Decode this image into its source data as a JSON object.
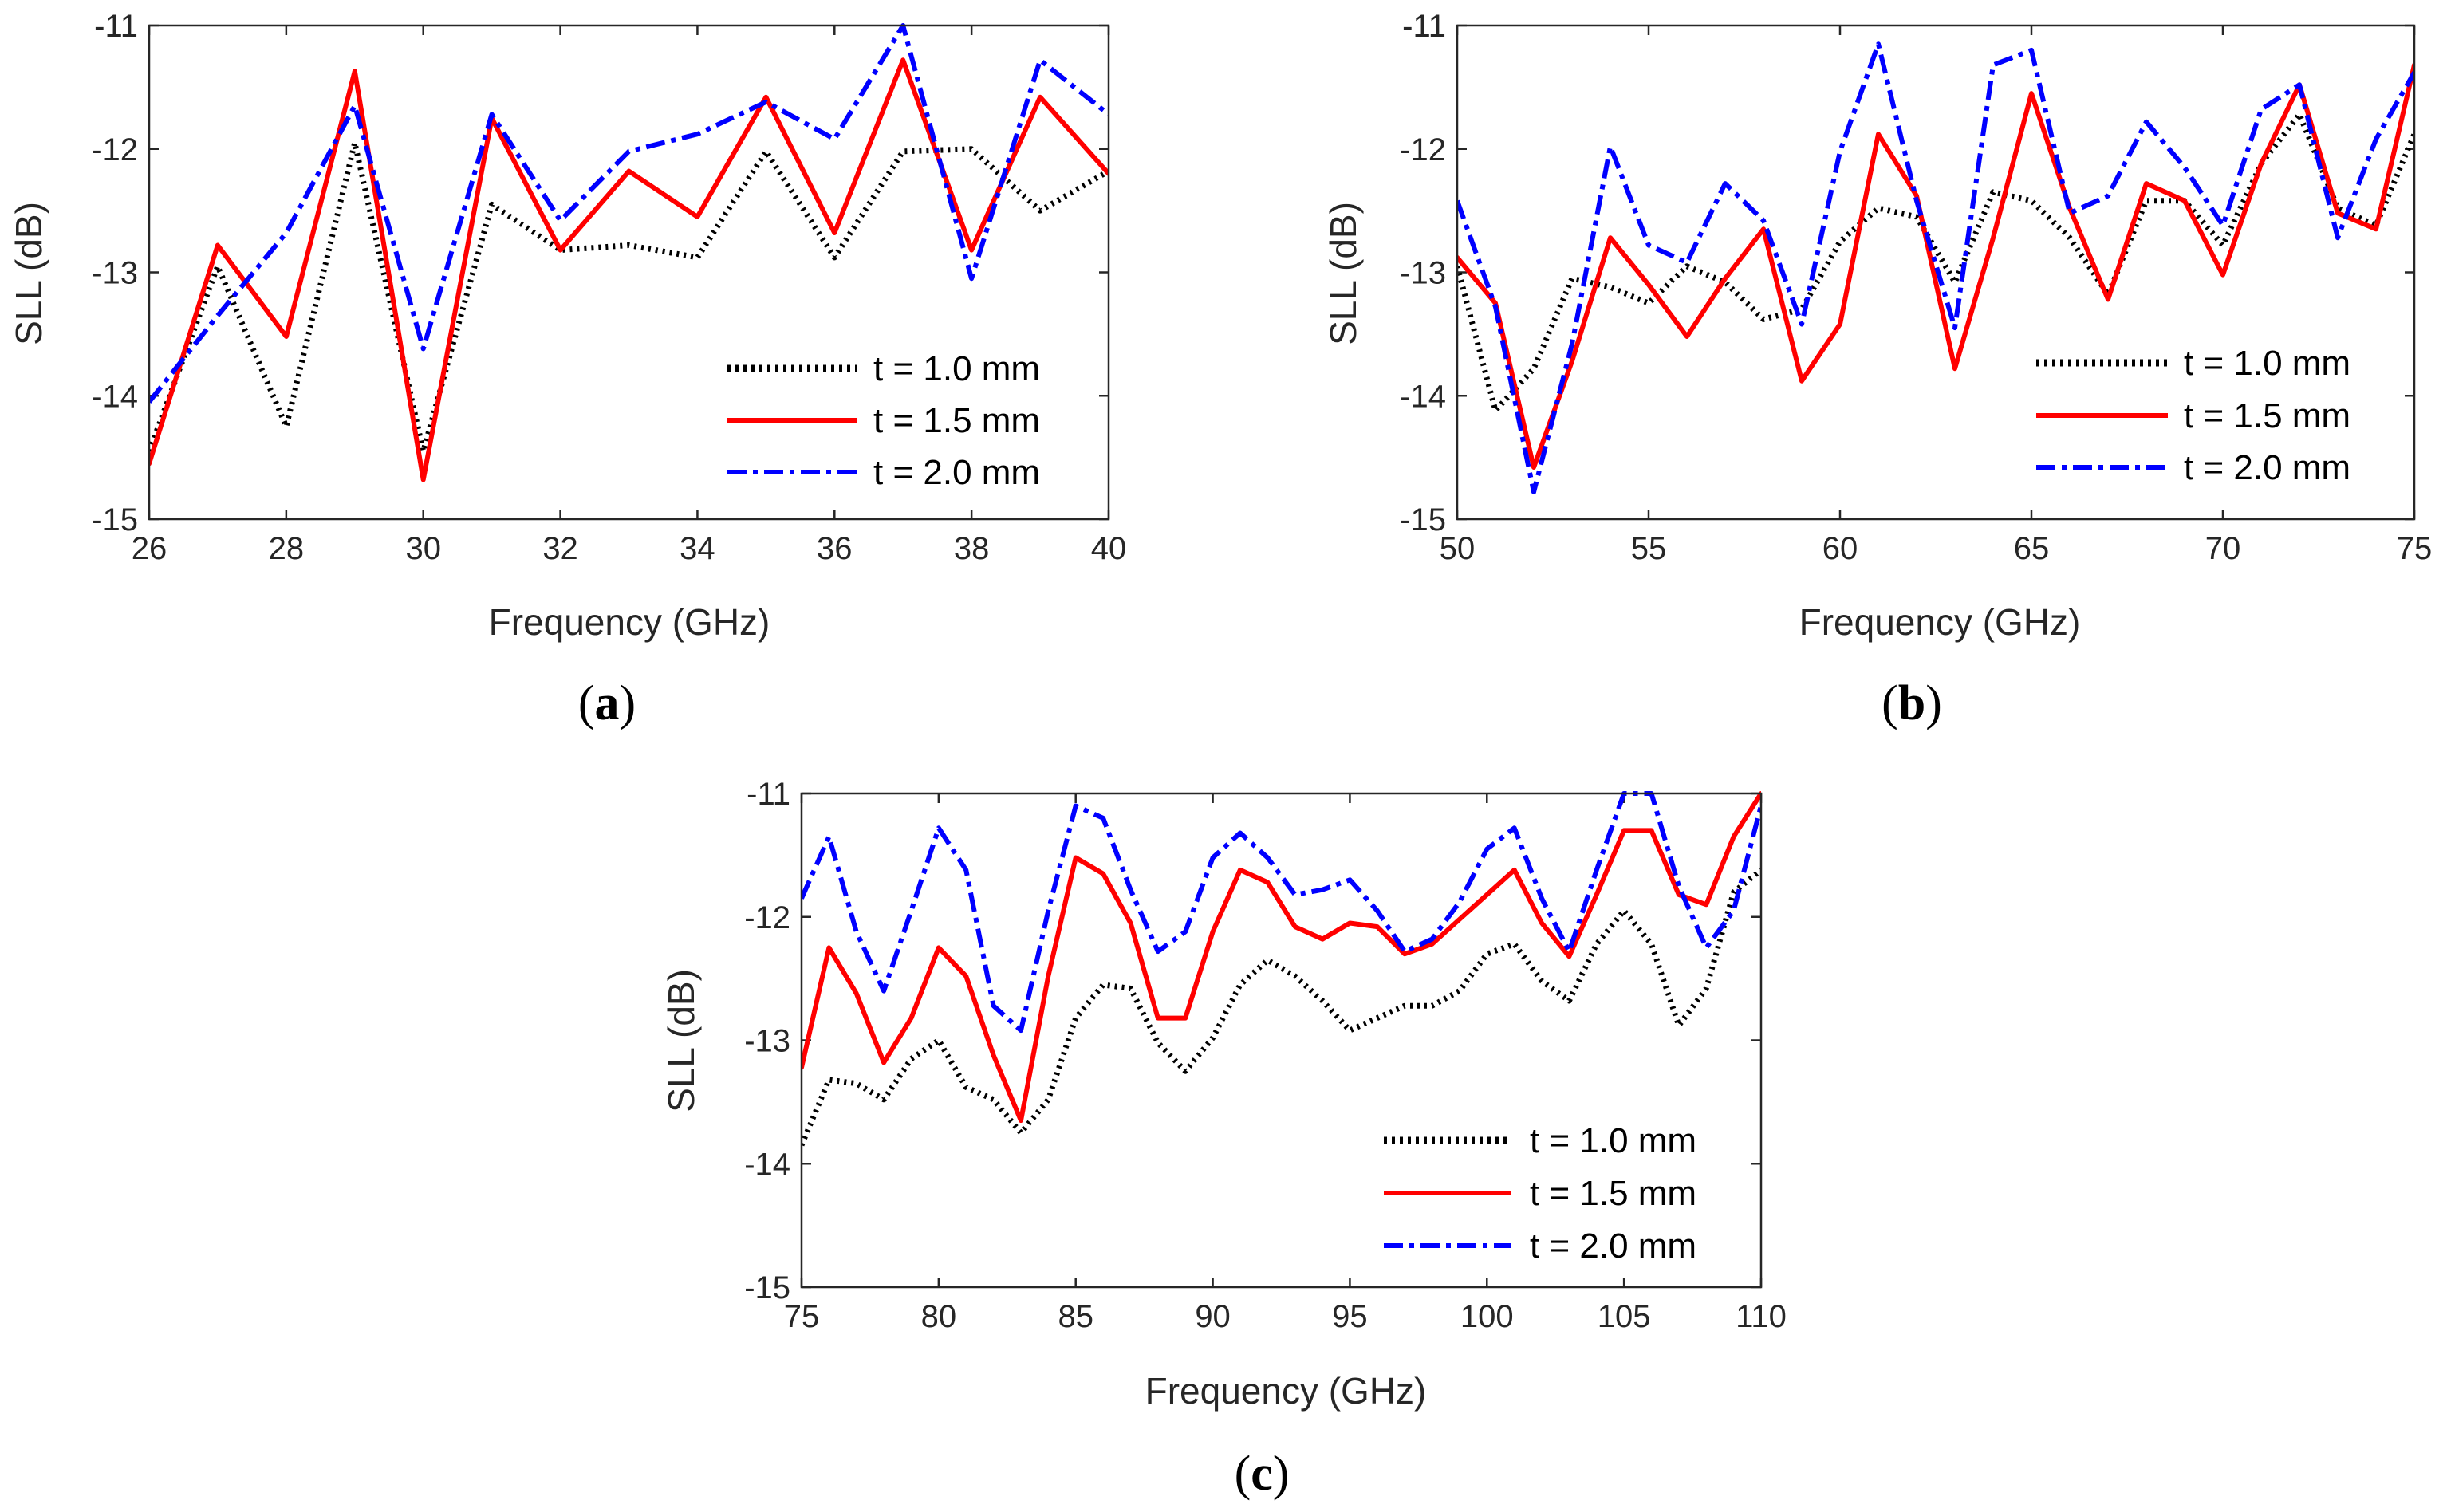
{
  "chart_data": [
    {
      "type": "line",
      "panel": "a",
      "panel_label": "a",
      "xlabel": "Frequency (GHz)",
      "ylabel": "SLL (dB)",
      "xlim": [
        26,
        40
      ],
      "ylim": [
        -15,
        -11
      ],
      "xticks": [
        26,
        28,
        30,
        32,
        34,
        36,
        38,
        40
      ],
      "yticks": [
        -15,
        -14,
        -13,
        -12,
        -11
      ],
      "legend_position": "bottom-right",
      "x": [
        26,
        27,
        28,
        29,
        30,
        31,
        32,
        33,
        34,
        35,
        36,
        37,
        38,
        39,
        40
      ],
      "series": [
        {
          "name": "t = 1.0 mm",
          "color": "#000000",
          "style": "dotted",
          "values": [
            -14.45,
            -12.95,
            -14.25,
            -11.95,
            -14.45,
            -12.45,
            -12.82,
            -12.78,
            -12.88,
            -12.02,
            -12.88,
            -12.02,
            -12.0,
            -12.5,
            -12.18
          ]
        },
        {
          "name": "t = 1.5 mm",
          "color": "#ff0000",
          "style": "solid",
          "values": [
            -14.55,
            -12.78,
            -13.52,
            -11.37,
            -14.68,
            -11.75,
            -12.82,
            -12.18,
            -12.55,
            -11.58,
            -12.68,
            -11.28,
            -12.82,
            -11.58,
            -12.2
          ]
        },
        {
          "name": "t = 2.0 mm",
          "color": "#0000ff",
          "style": "dashdot",
          "values": [
            -14.05,
            -13.35,
            -12.68,
            -11.65,
            -13.62,
            -11.72,
            -12.58,
            -12.02,
            -11.88,
            -11.62,
            -11.92,
            -11.0,
            -13.05,
            -11.28,
            -11.72
          ]
        }
      ]
    },
    {
      "type": "line",
      "panel": "b",
      "panel_label": "b",
      "xlabel": "Frequency (GHz)",
      "ylabel": "SLL (dB)",
      "xlim": [
        50,
        75
      ],
      "ylim": [
        -15,
        -11
      ],
      "xticks": [
        50,
        55,
        60,
        65,
        70,
        75
      ],
      "yticks": [
        -15,
        -14,
        -13,
        -12,
        -11
      ],
      "legend_position": "bottom-right",
      "x": [
        50,
        51,
        52,
        53,
        54,
        55,
        56,
        57,
        58,
        59,
        60,
        61,
        62,
        63,
        64,
        65,
        66,
        67,
        68,
        69,
        70,
        71,
        72,
        73,
        74,
        75
      ],
      "series": [
        {
          "name": "t = 1.0 mm",
          "color": "#000000",
          "style": "dotted",
          "values": [
            -12.95,
            -14.12,
            -13.78,
            -13.05,
            -13.12,
            -13.25,
            -12.95,
            -13.08,
            -13.38,
            -13.3,
            -12.75,
            -12.48,
            -12.55,
            -13.08,
            -12.35,
            -12.42,
            -12.72,
            -13.18,
            -12.42,
            -12.42,
            -12.78,
            -12.12,
            -11.72,
            -12.48,
            -12.62,
            -11.88
          ]
        },
        {
          "name": "t = 1.5 mm",
          "color": "#ff0000",
          "style": "solid",
          "values": [
            -12.88,
            -13.25,
            -14.58,
            -13.72,
            -12.72,
            -13.1,
            -13.52,
            -13.05,
            -12.65,
            -13.88,
            -13.42,
            -11.88,
            -12.38,
            -13.78,
            -12.72,
            -11.55,
            -12.48,
            -13.22,
            -12.28,
            -12.42,
            -13.02,
            -12.12,
            -11.48,
            -12.52,
            -12.65,
            -11.32
          ]
        },
        {
          "name": "t = 2.0 mm",
          "color": "#0000ff",
          "style": "dashdot",
          "values": [
            -12.42,
            -13.28,
            -14.78,
            -13.58,
            -11.98,
            -12.78,
            -12.92,
            -12.28,
            -12.58,
            -13.42,
            -12.02,
            -11.15,
            -12.42,
            -13.45,
            -11.32,
            -11.2,
            -12.52,
            -12.38,
            -11.78,
            -12.15,
            -12.62,
            -11.68,
            -11.48,
            -12.72,
            -11.92,
            -11.38
          ]
        }
      ]
    },
    {
      "type": "line",
      "panel": "c",
      "panel_label": "c",
      "xlabel": "Frequency (GHz)",
      "ylabel": "SLL (dB)",
      "xlim": [
        75,
        110
      ],
      "ylim": [
        -15,
        -11
      ],
      "xticks": [
        75,
        80,
        85,
        90,
        95,
        100,
        105,
        110
      ],
      "yticks": [
        -15,
        -14,
        -13,
        -12,
        -11
      ],
      "legend_position": "bottom-right",
      "x": [
        75,
        76,
        77,
        78,
        79,
        80,
        81,
        82,
        83,
        84,
        85,
        86,
        87,
        88,
        89,
        90,
        91,
        92,
        93,
        94,
        95,
        96,
        97,
        98,
        99,
        100,
        101,
        102,
        103,
        104,
        105,
        106,
        107,
        108,
        109,
        110
      ],
      "series": [
        {
          "name": "t = 1.0 mm",
          "color": "#000000",
          "style": "dotted",
          "values": [
            -13.85,
            -13.32,
            -13.35,
            -13.48,
            -13.15,
            -13.0,
            -13.38,
            -13.48,
            -13.75,
            -13.48,
            -12.82,
            -12.55,
            -12.58,
            -13.02,
            -13.25,
            -12.98,
            -12.55,
            -12.35,
            -12.48,
            -12.68,
            -12.92,
            -12.82,
            -12.72,
            -12.72,
            -12.6,
            -12.3,
            -12.22,
            -12.52,
            -12.68,
            -12.22,
            -11.95,
            -12.22,
            -12.88,
            -12.58,
            -11.8,
            -11.62
          ]
        },
        {
          "name": "t = 1.5 mm",
          "color": "#ff0000",
          "style": "solid",
          "values": [
            -13.22,
            -12.25,
            -12.62,
            -13.18,
            -12.82,
            -12.25,
            -12.48,
            -13.12,
            -13.65,
            -12.48,
            -11.52,
            -11.65,
            -12.05,
            -12.82,
            -12.82,
            -12.12,
            -11.62,
            -11.72,
            -12.08,
            -12.18,
            -12.05,
            -12.08,
            -12.3,
            -12.22,
            -12.02,
            -11.82,
            -11.62,
            -12.05,
            -12.32,
            -11.82,
            -11.3,
            -11.3,
            -11.82,
            -11.9,
            -11.35,
            -11.0
          ]
        },
        {
          "name": "t = 2.0 mm",
          "color": "#0000ff",
          "style": "dashdot",
          "values": [
            -11.85,
            -11.35,
            -12.12,
            -12.6,
            -11.95,
            -11.28,
            -11.62,
            -12.72,
            -12.92,
            -11.95,
            -11.1,
            -11.2,
            -11.78,
            -12.28,
            -12.12,
            -11.52,
            -11.32,
            -11.52,
            -11.82,
            -11.78,
            -11.7,
            -11.95,
            -12.28,
            -12.18,
            -11.88,
            -11.45,
            -11.28,
            -11.85,
            -12.28,
            -11.62,
            -11.0,
            -11.0,
            -11.75,
            -12.25,
            -11.95,
            -11.1
          ]
        }
      ]
    }
  ]
}
